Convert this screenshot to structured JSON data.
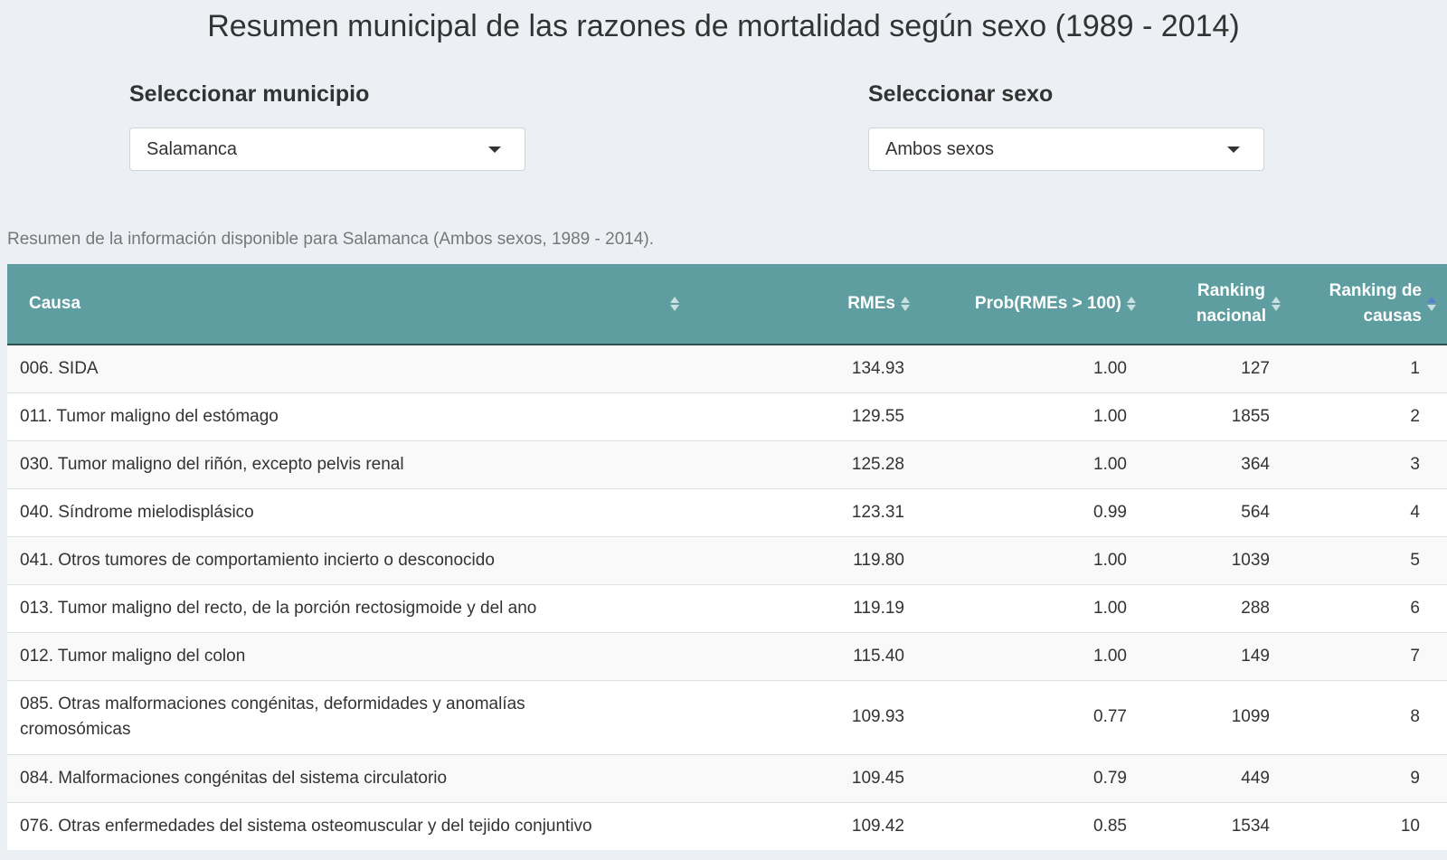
{
  "title": "Resumen municipal de las razones de mortalidad según sexo (1989 - 2014)",
  "selectors": {
    "municipio": {
      "label": "Seleccionar municipio",
      "value": "Salamanca"
    },
    "sexo": {
      "label": "Seleccionar sexo",
      "value": "Ambos sexos"
    }
  },
  "summary": "Resumen de la información disponible para Salamanca (Ambos sexos, 1989 - 2014).",
  "table": {
    "columns": {
      "causa": "Causa",
      "rmes": "RMEs",
      "prob": "Prob(RMEs > 100)",
      "ranking_nacional_1": "Ranking",
      "ranking_nacional_2": "nacional",
      "ranking_causas_1": "Ranking de",
      "ranking_causas_2": "causas"
    },
    "rows": [
      {
        "causa": "006. SIDA",
        "rmes": "134.93",
        "prob": "1.00",
        "nacional": "127",
        "causas": "1"
      },
      {
        "causa": "011. Tumor maligno del estómago",
        "rmes": "129.55",
        "prob": "1.00",
        "nacional": "1855",
        "causas": "2"
      },
      {
        "causa": "030. Tumor maligno del riñón, excepto pelvis renal",
        "rmes": "125.28",
        "prob": "1.00",
        "nacional": "364",
        "causas": "3"
      },
      {
        "causa": "040. Síndrome mielodisplásico",
        "rmes": "123.31",
        "prob": "0.99",
        "nacional": "564",
        "causas": "4"
      },
      {
        "causa": "041. Otros tumores de comportamiento incierto o desconocido",
        "rmes": "119.80",
        "prob": "1.00",
        "nacional": "1039",
        "causas": "5"
      },
      {
        "causa": "013. Tumor maligno del recto, de la porción rectosigmoide y del ano",
        "rmes": "119.19",
        "prob": "1.00",
        "nacional": "288",
        "causas": "6"
      },
      {
        "causa": "012. Tumor maligno del colon",
        "rmes": "115.40",
        "prob": "1.00",
        "nacional": "149",
        "causas": "7"
      },
      {
        "causa": "085. Otras malformaciones congénitas, deformidades y anomalías cromosómicas",
        "rmes": "109.93",
        "prob": "0.77",
        "nacional": "1099",
        "causas": "8"
      },
      {
        "causa": "084. Malformaciones congénitas del sistema circulatorio",
        "rmes": "109.45",
        "prob": "0.79",
        "nacional": "449",
        "causas": "9"
      },
      {
        "causa": "076. Otras enfermedades del sistema osteomuscular y del tejido conjuntivo",
        "rmes": "109.42",
        "prob": "0.85",
        "nacional": "1534",
        "causas": "10"
      }
    ]
  }
}
